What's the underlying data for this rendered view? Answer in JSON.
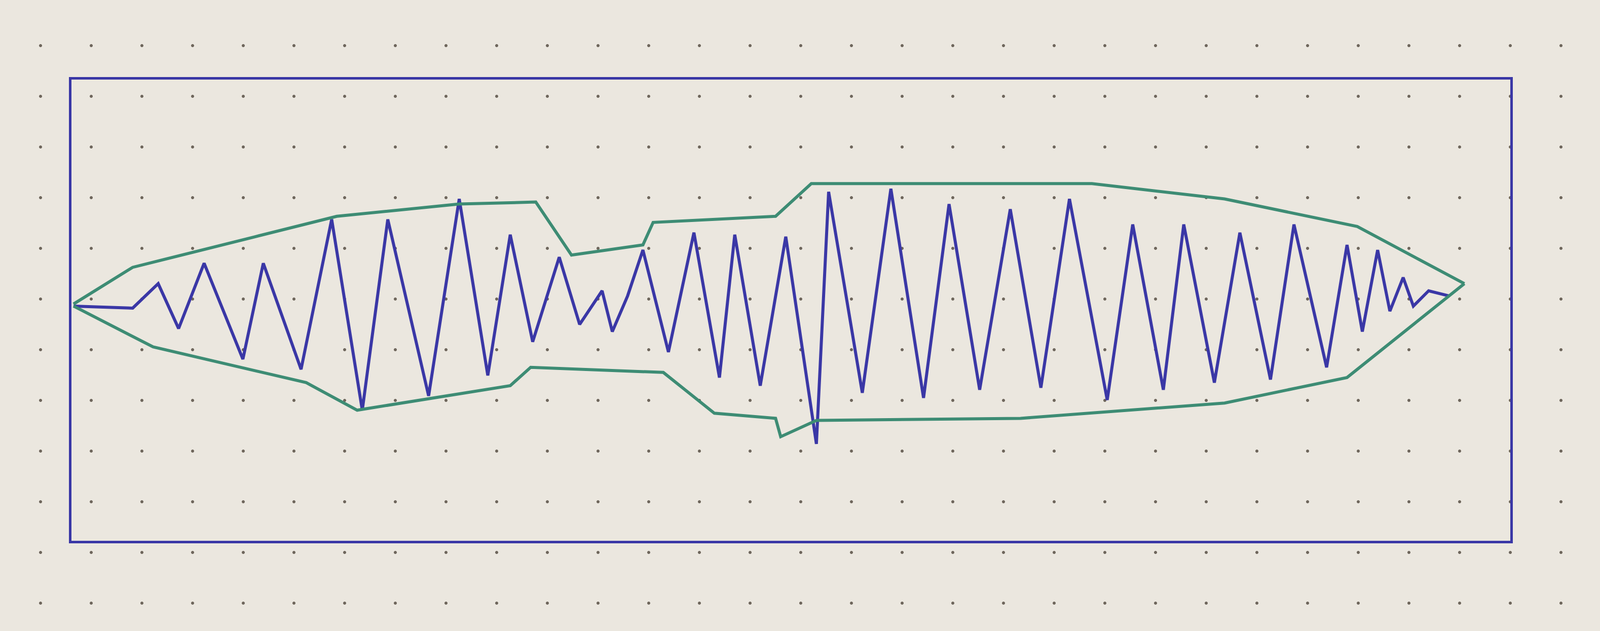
{
  "chart_data": {
    "type": "line",
    "xlim": [
      0,
      1410
    ],
    "ylim": [
      -230,
      222
    ],
    "xticks": [],
    "yticks": [],
    "tick_labels": false,
    "grid": false,
    "series": [
      {
        "color": "#3a37a6",
        "x": [
          2,
          60,
          85,
          105,
          130,
          168,
          188,
          225,
          255,
          285,
          310,
          350,
          380,
          408,
          430,
          452,
          478,
          498,
          520,
          530,
          545,
          560,
          585,
          610,
          635,
          650,
          675,
          700,
          730,
          742,
          775,
          803,
          835,
          860,
          890,
          920,
          950,
          978,
          1015,
          1040,
          1070,
          1090,
          1120,
          1145,
          1175,
          1198,
          1230,
          1250,
          1265,
          1280,
          1292,
          1305,
          1315,
          1330,
          1350
        ],
        "values": [
          0,
          -2,
          22,
          -22,
          42,
          -52,
          42,
          -62,
          85,
          -102,
          85,
          -88,
          105,
          -68,
          70,
          -35,
          48,
          -18,
          15,
          -25,
          10,
          55,
          -45,
          72,
          -70,
          70,
          -78,
          68,
          -135,
          112,
          -85,
          115,
          -90,
          100,
          -82,
          95,
          -80,
          105,
          -92,
          80,
          -82,
          80,
          -75,
          72,
          -72,
          80,
          -60,
          60,
          -25,
          55,
          -5,
          28,
          0,
          15,
          10
        ]
      },
      {
        "color": "#3d8c74",
        "x": [
          2,
          60,
          180,
          260,
          380,
          455,
          490,
          560,
          570,
          690,
          725,
          1000,
          1130,
          1260,
          1365
        ],
        "values": [
          2,
          38,
          68,
          88,
          100,
          102,
          50,
          60,
          82,
          88,
          120,
          120,
          105,
          78,
          22
        ]
      },
      {
        "color": "#3d8c74",
        "x": [
          2,
          80,
          230,
          280,
          430,
          450,
          580,
          630,
          690,
          695,
          730,
          930,
          1130,
          1250,
          1365
        ],
        "values": [
          0,
          -40,
          -75,
          -102,
          -78,
          -60,
          -65,
          -105,
          -110,
          -128,
          -112,
          -110,
          -95,
          -70,
          22
        ]
      }
    ]
  }
}
